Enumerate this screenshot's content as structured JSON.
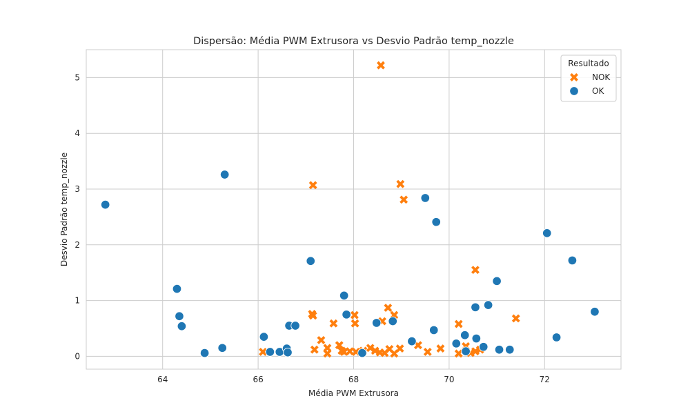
{
  "chart_data": {
    "type": "scatter",
    "title": "Dispersão: Média PWM Extrusora vs Desvio Padrão temp_nozzle",
    "xlabel": "Média PWM Extrusora",
    "ylabel": "Desvio Padrão temp_nozzle",
    "xlim": [
      62.4,
      73.6
    ],
    "ylim": [
      -0.23,
      5.5
    ],
    "xticks": [
      64,
      66,
      68,
      70,
      72
    ],
    "yticks": [
      0,
      1,
      2,
      3,
      4,
      5
    ],
    "grid": true,
    "legend": {
      "title": "Resultado",
      "placement": "top-right"
    },
    "series": [
      {
        "name": "NOK",
        "color": "#ff7f0e",
        "marker": "x",
        "points": [
          [
            68.57,
            5.22
          ],
          [
            67.15,
            3.07
          ],
          [
            68.98,
            3.09
          ],
          [
            69.05,
            2.81
          ],
          [
            70.55,
            1.55
          ],
          [
            71.4,
            0.68
          ],
          [
            70.2,
            0.58
          ],
          [
            68.72,
            0.87
          ],
          [
            68.85,
            0.74
          ],
          [
            67.13,
            0.76
          ],
          [
            67.15,
            0.73
          ],
          [
            68.02,
            0.74
          ],
          [
            67.58,
            0.59
          ],
          [
            68.03,
            0.59
          ],
          [
            68.6,
            0.63
          ],
          [
            67.32,
            0.29
          ],
          [
            67.18,
            0.12
          ],
          [
            67.7,
            0.2
          ],
          [
            67.75,
            0.1
          ],
          [
            67.45,
            0.15
          ],
          [
            67.45,
            0.05
          ],
          [
            67.8,
            0.08
          ],
          [
            67.92,
            0.09
          ],
          [
            68.05,
            0.08
          ],
          [
            68.2,
            0.1
          ],
          [
            68.35,
            0.15
          ],
          [
            68.45,
            0.1
          ],
          [
            68.55,
            0.07
          ],
          [
            68.65,
            0.06
          ],
          [
            68.75,
            0.13
          ],
          [
            68.85,
            0.05
          ],
          [
            68.97,
            0.14
          ],
          [
            69.35,
            0.2
          ],
          [
            69.55,
            0.08
          ],
          [
            69.82,
            0.14
          ],
          [
            70.2,
            0.05
          ],
          [
            70.35,
            0.18
          ],
          [
            70.45,
            0.06
          ],
          [
            70.55,
            0.09
          ],
          [
            70.65,
            0.12
          ],
          [
            66.1,
            0.08
          ]
        ]
      },
      {
        "name": "OK",
        "color": "#1f77b4",
        "marker": "o",
        "points": [
          [
            62.8,
            2.72
          ],
          [
            65.3,
            3.26
          ],
          [
            64.3,
            1.21
          ],
          [
            64.35,
            0.72
          ],
          [
            64.4,
            0.54
          ],
          [
            64.88,
            0.06
          ],
          [
            65.25,
            0.15
          ],
          [
            66.12,
            0.35
          ],
          [
            66.25,
            0.08
          ],
          [
            66.45,
            0.08
          ],
          [
            66.6,
            0.14
          ],
          [
            66.62,
            0.07
          ],
          [
            66.65,
            0.55
          ],
          [
            66.78,
            0.55
          ],
          [
            67.1,
            1.71
          ],
          [
            67.8,
            1.09
          ],
          [
            67.85,
            0.75
          ],
          [
            68.18,
            0.06
          ],
          [
            68.48,
            0.6
          ],
          [
            68.82,
            0.63
          ],
          [
            69.22,
            0.27
          ],
          [
            69.5,
            2.84
          ],
          [
            69.68,
            0.47
          ],
          [
            69.73,
            2.41
          ],
          [
            70.15,
            0.23
          ],
          [
            70.33,
            0.38
          ],
          [
            70.35,
            0.09
          ],
          [
            70.55,
            0.88
          ],
          [
            70.57,
            0.32
          ],
          [
            70.72,
            0.17
          ],
          [
            70.82,
            0.92
          ],
          [
            71.0,
            1.35
          ],
          [
            71.05,
            0.12
          ],
          [
            71.27,
            0.12
          ],
          [
            72.05,
            2.21
          ],
          [
            72.25,
            0.34
          ],
          [
            72.58,
            1.72
          ],
          [
            73.05,
            0.8
          ]
        ]
      }
    ]
  }
}
